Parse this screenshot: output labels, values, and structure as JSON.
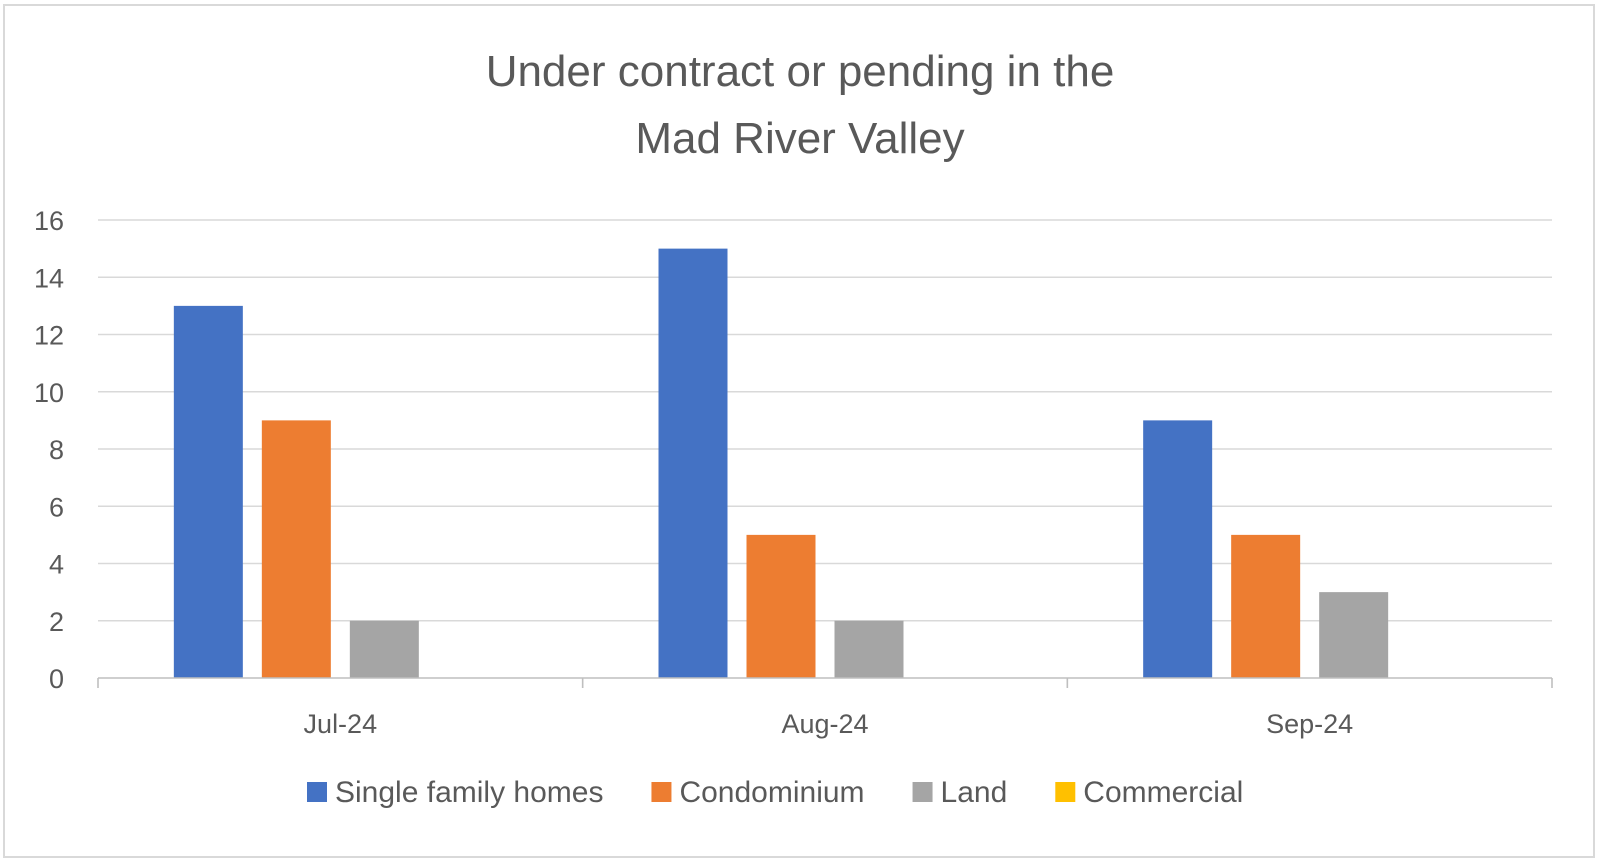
{
  "chart_data": {
    "type": "bar",
    "title_lines": [
      "Under contract or pending in the",
      "Mad River Valley"
    ],
    "categories": [
      "Jul-24",
      "Aug-24",
      "Sep-24"
    ],
    "series": [
      {
        "name": "Single family homes",
        "values": [
          13,
          15,
          9
        ],
        "color": "#4472c4"
      },
      {
        "name": "Condominium",
        "values": [
          9,
          5,
          5
        ],
        "color": "#ed7d31"
      },
      {
        "name": "Land",
        "values": [
          2,
          2,
          3
        ],
        "color": "#a5a5a5"
      },
      {
        "name": "Commercial",
        "values": [
          0,
          0,
          0
        ],
        "color": "#ffc000"
      }
    ],
    "ylim": [
      0,
      16
    ],
    "yticks": [
      "0",
      "2",
      "4",
      "6",
      "8",
      "10",
      "12",
      "14",
      "16"
    ],
    "grid": true,
    "legend_position": "bottom"
  }
}
